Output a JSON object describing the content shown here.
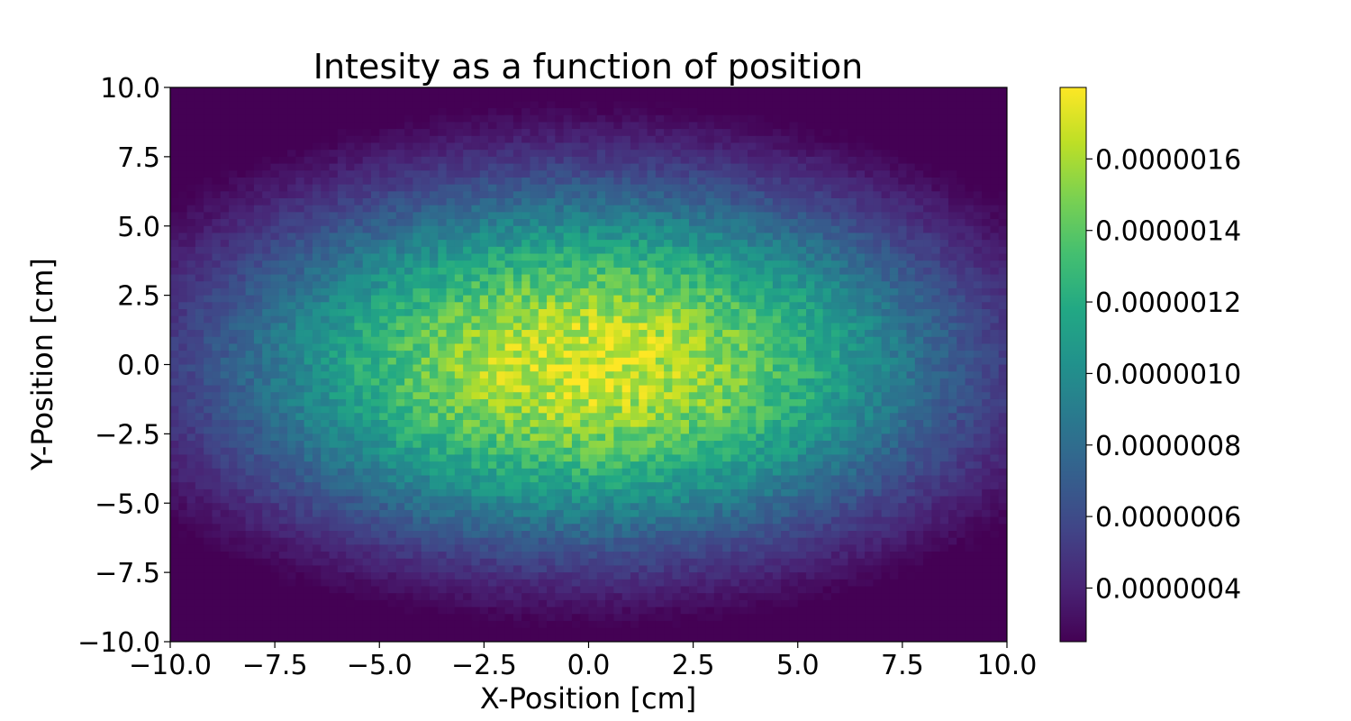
{
  "chart_data": {
    "type": "heatmap",
    "title": "Intesity as a function of position",
    "xlabel": "X-Position [cm]",
    "ylabel": "Y-Position [cm]",
    "xlim": [
      -10,
      10
    ],
    "ylim": [
      -10,
      10
    ],
    "xticks": [
      -10,
      -7.5,
      -5,
      -2.5,
      0,
      2.5,
      5,
      7.5,
      10
    ],
    "xtick_labels": [
      "−10.0",
      "−7.5",
      "−5.0",
      "−2.5",
      "0.0",
      "2.5",
      "5.0",
      "7.5",
      "10.0"
    ],
    "yticks": [
      -10,
      -7.5,
      -5,
      -2.5,
      0,
      2.5,
      5,
      7.5,
      10
    ],
    "ytick_labels": [
      "−10.0",
      "−7.5",
      "−5.0",
      "−2.5",
      "0.0",
      "2.5",
      "5.0",
      "7.5",
      "10.0"
    ],
    "bins": {
      "x": 100,
      "y": 80
    },
    "colormap": "viridis",
    "color_range": [
      2.5e-07,
      1.8e-06
    ],
    "distribution": {
      "shape": "gaussian",
      "center": [
        0,
        0
      ],
      "sigma_x": 6.5,
      "sigma_y": 4.8,
      "peak_value": 1.7e-06
    },
    "colorbar": {
      "ticks": [
        4e-07,
        6e-07,
        8e-07,
        1e-06,
        1.2e-06,
        1.4e-06,
        1.6e-06
      ],
      "tick_labels": [
        "0.0000004",
        "0.0000006",
        "0.0000008",
        "0.0000010",
        "0.0000012",
        "0.0000014",
        "0.0000016"
      ]
    },
    "grid": false
  }
}
